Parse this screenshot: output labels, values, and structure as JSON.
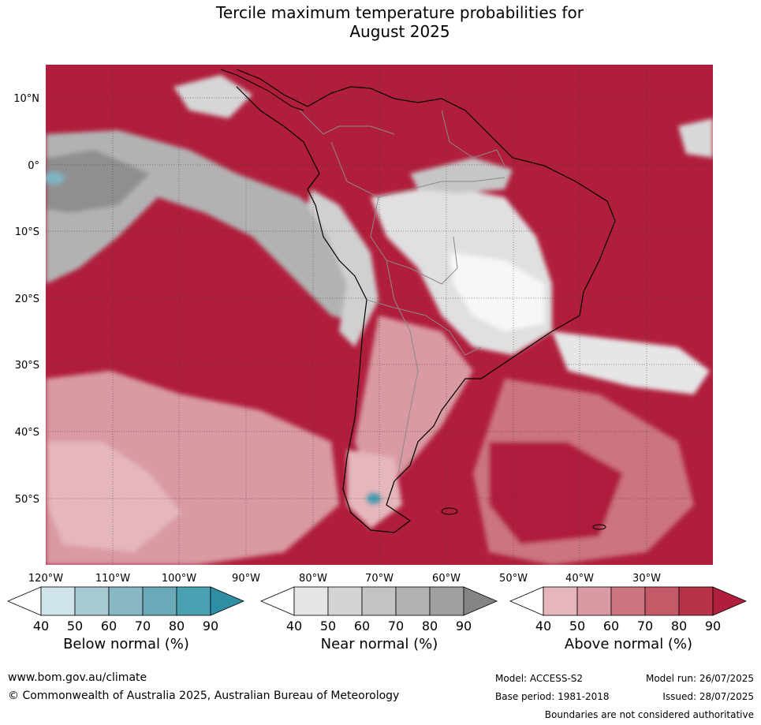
{
  "title_line1": "Tercile maximum temperature probabilities for",
  "title_line2": "August 2025",
  "map": {
    "region": "South America",
    "variable": "maximum temperature",
    "lat_labels": [
      "10°N",
      "0°",
      "10°S",
      "20°S",
      "30°S",
      "40°S",
      "50°S"
    ],
    "lon_labels": [
      "120°W",
      "110°W",
      "100°W",
      "90°W",
      "80°W",
      "70°W",
      "60°W",
      "50°W",
      "40°W",
      "30°W"
    ]
  },
  "colorbars": [
    {
      "label": "Below normal (%)",
      "ticks": [
        "40",
        "50",
        "60",
        "70",
        "80",
        "90"
      ],
      "colors": [
        "#ffffff",
        "#cfe3ea",
        "#a7c9d2",
        "#89b7c4",
        "#6aaab8",
        "#4a9fb0",
        "#2e8ea3"
      ]
    },
    {
      "label": "Near normal (%)",
      "ticks": [
        "40",
        "50",
        "60",
        "70",
        "80",
        "90"
      ],
      "colors": [
        "#ffffff",
        "#e6e6e6",
        "#d4d4d4",
        "#c3c3c3",
        "#b2b2b2",
        "#a0a0a0",
        "#848484"
      ]
    },
    {
      "label": "Above normal (%)",
      "ticks": [
        "40",
        "50",
        "60",
        "70",
        "80",
        "90"
      ],
      "colors": [
        "#ffffff",
        "#e5b6bc",
        "#d99aa3",
        "#cc747f",
        "#c45a67",
        "#b93346",
        "#b01e3c"
      ]
    }
  ],
  "footer": {
    "url": "www.bom.gov.au/climate",
    "copyright": "© Commonwealth of Australia 2025, Australian Bureau of Meteorology",
    "model": "Model: ACCESS-S2",
    "base_period": "Base period: 1981-2018",
    "model_run": "Model run: 26/07/2025",
    "issued": "Issued: 28/07/2025",
    "disclaimer": "Boundaries are not considered authoritative"
  }
}
